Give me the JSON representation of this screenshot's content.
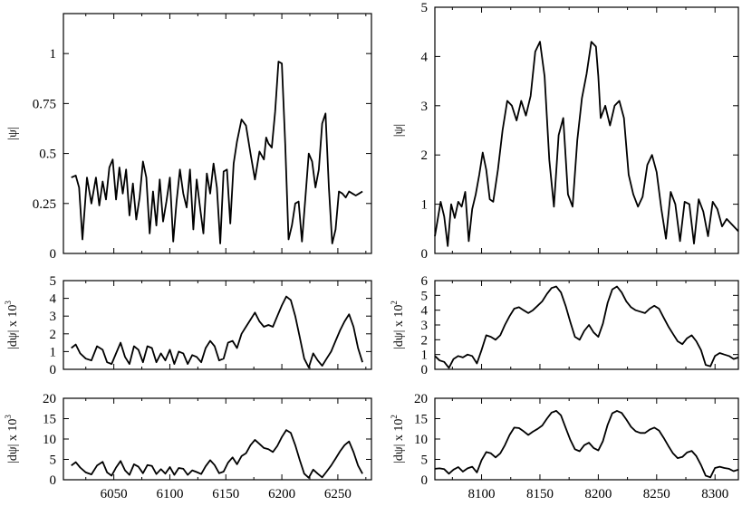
{
  "figure": {
    "background": "#ffffff",
    "line_color": "#000000",
    "frame_color": "#000000"
  },
  "chart_data": [
    {
      "id": "top-left",
      "type": "line",
      "xlabel": "",
      "ylabel": "|ψ|",
      "xlim": [
        6005,
        6280
      ],
      "ylim": [
        0,
        1.2
      ],
      "xticks": [
        6050,
        6100,
        6150,
        6200,
        6250
      ],
      "show_xtick_labels": false,
      "yticks": [
        0,
        0.25,
        0.5,
        0.75,
        1
      ],
      "ytick_labels": [
        "0",
        "0.25",
        "0.5",
        "0.75",
        "1"
      ],
      "grid": false,
      "series": [
        {
          "x": [
            6012,
            6016,
            6019,
            6022,
            6026,
            6030,
            6034,
            6037,
            6040,
            6043,
            6046,
            6049,
            6052,
            6055,
            6058,
            6061,
            6064,
            6067,
            6070,
            6073,
            6076,
            6079,
            6082,
            6085,
            6088,
            6091,
            6094,
            6097,
            6100,
            6103,
            6106,
            6109,
            6112,
            6115,
            6118,
            6121,
            6124,
            6127,
            6130,
            6133,
            6136,
            6139,
            6142,
            6145,
            6148,
            6151,
            6154,
            6157,
            6160,
            6164,
            6168,
            6172,
            6176,
            6180,
            6184,
            6186,
            6188,
            6191,
            6194,
            6197,
            6200,
            6203,
            6206,
            6209,
            6212,
            6215,
            6218,
            6221,
            6224,
            6227,
            6230,
            6233,
            6236,
            6239,
            6242,
            6245,
            6248,
            6251,
            6254,
            6257,
            6260,
            6263,
            6266,
            6269,
            6272
          ],
          "y": [
            0.38,
            0.39,
            0.33,
            0.07,
            0.38,
            0.25,
            0.38,
            0.24,
            0.36,
            0.27,
            0.43,
            0.47,
            0.27,
            0.43,
            0.3,
            0.42,
            0.19,
            0.35,
            0.17,
            0.28,
            0.46,
            0.38,
            0.1,
            0.31,
            0.14,
            0.37,
            0.16,
            0.26,
            0.38,
            0.06,
            0.26,
            0.42,
            0.3,
            0.23,
            0.42,
            0.12,
            0.37,
            0.23,
            0.1,
            0.4,
            0.3,
            0.45,
            0.33,
            0.05,
            0.41,
            0.42,
            0.15,
            0.45,
            0.56,
            0.67,
            0.64,
            0.5,
            0.37,
            0.51,
            0.47,
            0.58,
            0.55,
            0.53,
            0.71,
            0.96,
            0.95,
            0.55,
            0.07,
            0.14,
            0.25,
            0.26,
            0.06,
            0.28,
            0.5,
            0.46,
            0.33,
            0.42,
            0.65,
            0.7,
            0.33,
            0.05,
            0.12,
            0.31,
            0.3,
            0.28,
            0.31,
            0.3,
            0.29,
            0.3,
            0.31
          ]
        }
      ]
    },
    {
      "id": "top-right",
      "type": "line",
      "xlabel": "",
      "ylabel": "|ψ|",
      "xlim": [
        8060,
        8320
      ],
      "ylim": [
        0,
        5
      ],
      "xticks": [
        8100,
        8150,
        8200,
        8250,
        8300
      ],
      "show_xtick_labels": false,
      "yticks": [
        0,
        1,
        2,
        3,
        4,
        5
      ],
      "ytick_labels": [
        "0",
        "1",
        "2",
        "3",
        "4",
        "5"
      ],
      "grid": false,
      "series": [
        {
          "x": [
            8060,
            8065,
            8068,
            8071,
            8074,
            8077,
            8080,
            8083,
            8086,
            8089,
            8092,
            8095,
            8098,
            8101,
            8104,
            8107,
            8110,
            8114,
            8118,
            8122,
            8126,
            8130,
            8134,
            8138,
            8142,
            8146,
            8150,
            8154,
            8158,
            8162,
            8166,
            8170,
            8174,
            8178,
            8182,
            8186,
            8190,
            8194,
            8198,
            8200,
            8202,
            8206,
            8210,
            8214,
            8218,
            8222,
            8226,
            8230,
            8234,
            8238,
            8242,
            8246,
            8250,
            8254,
            8258,
            8262,
            8266,
            8270,
            8274,
            8278,
            8282,
            8286,
            8290,
            8294,
            8298,
            8302,
            8306,
            8310,
            8314,
            8318,
            8320
          ],
          "y": [
            0.35,
            1.05,
            0.75,
            0.15,
            1.0,
            0.72,
            1.05,
            0.95,
            1.25,
            0.25,
            0.9,
            1.2,
            1.6,
            2.05,
            1.7,
            1.1,
            1.05,
            1.7,
            2.5,
            3.1,
            3.0,
            2.7,
            3.1,
            2.8,
            3.2,
            4.1,
            4.3,
            3.6,
            1.9,
            0.95,
            2.4,
            2.75,
            1.2,
            0.95,
            2.3,
            3.15,
            3.65,
            4.3,
            4.2,
            3.6,
            2.75,
            3.0,
            2.6,
            3.0,
            3.1,
            2.75,
            1.6,
            1.2,
            0.95,
            1.15,
            1.8,
            2.0,
            1.65,
            0.9,
            0.3,
            1.25,
            1.0,
            0.25,
            1.05,
            1.0,
            0.2,
            1.1,
            0.85,
            0.35,
            1.05,
            0.9,
            0.55,
            0.7,
            0.6,
            0.5,
            0.45
          ]
        }
      ]
    },
    {
      "id": "mid-left",
      "type": "line",
      "xlabel": "",
      "ylabel": "|dψ| x 10^3",
      "ylabel_parts": {
        "base": "|dψ| x 10",
        "exponent": "3"
      },
      "xlim": [
        6005,
        6280
      ],
      "ylim": [
        0,
        5
      ],
      "xticks": [
        6050,
        6100,
        6150,
        6200,
        6250
      ],
      "show_xtick_labels": false,
      "yticks": [
        0,
        1,
        2,
        3,
        4,
        5
      ],
      "ytick_labels": [
        "0",
        "1",
        "2",
        "3",
        "4",
        "5"
      ],
      "grid": false,
      "series": [
        {
          "x": [
            6012,
            6016,
            6020,
            6025,
            6030,
            6035,
            6040,
            6044,
            6048,
            6052,
            6056,
            6060,
            6064,
            6068,
            6072,
            6076,
            6080,
            6084,
            6088,
            6092,
            6096,
            6100,
            6104,
            6108,
            6112,
            6116,
            6120,
            6124,
            6128,
            6132,
            6136,
            6140,
            6144,
            6148,
            6152,
            6156,
            6160,
            6164,
            6168,
            6172,
            6176,
            6180,
            6184,
            6188,
            6192,
            6196,
            6200,
            6204,
            6208,
            6212,
            6216,
            6220,
            6224,
            6228,
            6232,
            6236,
            6240,
            6244,
            6248,
            6252,
            6256,
            6260,
            6264,
            6268,
            6272
          ],
          "y": [
            1.2,
            1.4,
            0.9,
            0.6,
            0.5,
            1.3,
            1.1,
            0.4,
            0.3,
            0.9,
            1.5,
            0.7,
            0.3,
            1.3,
            1.1,
            0.4,
            1.3,
            1.2,
            0.4,
            0.9,
            0.5,
            1.1,
            0.3,
            1.0,
            0.9,
            0.3,
            0.8,
            0.7,
            0.4,
            1.2,
            1.6,
            1.3,
            0.5,
            0.6,
            1.5,
            1.6,
            1.2,
            2.0,
            2.4,
            2.8,
            3.2,
            2.7,
            2.4,
            2.5,
            2.4,
            3.0,
            3.6,
            4.1,
            3.9,
            3.0,
            1.8,
            0.6,
            0.1,
            0.9,
            0.5,
            0.2,
            0.6,
            1.0,
            1.6,
            2.2,
            2.7,
            3.1,
            2.4,
            1.2,
            0.4
          ]
        }
      ]
    },
    {
      "id": "mid-right",
      "type": "line",
      "xlabel": "",
      "ylabel": "|dψ| x 10^2",
      "ylabel_parts": {
        "base": "|dψ| x 10",
        "exponent": "2"
      },
      "xlim": [
        8060,
        8320
      ],
      "ylim": [
        0,
        6
      ],
      "xticks": [
        8100,
        8150,
        8200,
        8250,
        8300
      ],
      "show_xtick_labels": false,
      "yticks": [
        0,
        1,
        2,
        3,
        4,
        5,
        6
      ],
      "ytick_labels": [
        "0",
        "1",
        "2",
        "3",
        "4",
        "5",
        "6"
      ],
      "grid": false,
      "series": [
        {
          "x": [
            8060,
            8064,
            8068,
            8072,
            8076,
            8080,
            8084,
            8088,
            8092,
            8096,
            8100,
            8104,
            8108,
            8112,
            8116,
            8120,
            8124,
            8128,
            8132,
            8136,
            8140,
            8144,
            8148,
            8152,
            8156,
            8160,
            8164,
            8168,
            8172,
            8176,
            8180,
            8184,
            8188,
            8192,
            8196,
            8200,
            8204,
            8208,
            8212,
            8216,
            8220,
            8224,
            8228,
            8232,
            8236,
            8240,
            8244,
            8248,
            8252,
            8256,
            8260,
            8264,
            8268,
            8272,
            8276,
            8280,
            8284,
            8288,
            8292,
            8296,
            8300,
            8304,
            8308,
            8312,
            8316,
            8320
          ],
          "y": [
            0.9,
            0.6,
            0.5,
            0.1,
            0.7,
            0.9,
            0.8,
            1.0,
            0.9,
            0.4,
            1.3,
            2.3,
            2.2,
            2.0,
            2.3,
            3.0,
            3.6,
            4.1,
            4.2,
            4.0,
            3.8,
            4.0,
            4.3,
            4.6,
            5.1,
            5.5,
            5.6,
            5.2,
            4.3,
            3.2,
            2.2,
            2.0,
            2.6,
            3.0,
            2.5,
            2.2,
            3.1,
            4.5,
            5.4,
            5.6,
            5.2,
            4.6,
            4.2,
            4.0,
            3.9,
            3.8,
            4.1,
            4.3,
            4.1,
            3.5,
            2.9,
            2.4,
            1.9,
            1.7,
            2.1,
            2.3,
            1.9,
            1.3,
            0.3,
            0.2,
            0.9,
            1.1,
            1.0,
            0.9,
            0.7,
            0.8
          ]
        }
      ]
    },
    {
      "id": "bottom-left",
      "type": "line",
      "xlabel": "",
      "ylabel": "|dψ| x 10^3",
      "ylabel_parts": {
        "base": "|dψ| x 10",
        "exponent": "3"
      },
      "xlim": [
        6005,
        6280
      ],
      "ylim": [
        0,
        20
      ],
      "xticks": [
        6050,
        6100,
        6150,
        6200,
        6250
      ],
      "show_xtick_labels": true,
      "xtick_labels": [
        "6050",
        "6100",
        "6150",
        "6200",
        "6250"
      ],
      "yticks": [
        0,
        5,
        10,
        15,
        20
      ],
      "ytick_labels": [
        "0",
        "5",
        "10",
        "15",
        "20"
      ],
      "grid": false,
      "series": [
        {
          "x": [
            6012,
            6016,
            6020,
            6025,
            6030,
            6035,
            6040,
            6044,
            6048,
            6052,
            6056,
            6060,
            6064,
            6068,
            6072,
            6076,
            6080,
            6084,
            6088,
            6092,
            6096,
            6100,
            6104,
            6108,
            6112,
            6116,
            6120,
            6124,
            6128,
            6132,
            6136,
            6140,
            6144,
            6148,
            6152,
            6156,
            6160,
            6164,
            6168,
            6172,
            6176,
            6180,
            6184,
            6188,
            6192,
            6196,
            6200,
            6204,
            6208,
            6212,
            6216,
            6220,
            6224,
            6228,
            6232,
            6236,
            6240,
            6244,
            6248,
            6252,
            6256,
            6260,
            6264,
            6268,
            6272
          ],
          "y": [
            3.5,
            4.3,
            3.0,
            1.8,
            1.3,
            3.5,
            4.4,
            1.8,
            1.0,
            3.0,
            4.6,
            2.3,
            1.2,
            3.8,
            3.2,
            1.6,
            3.6,
            3.4,
            1.4,
            2.6,
            1.5,
            3.1,
            1.2,
            2.9,
            2.7,
            1.2,
            2.3,
            1.9,
            1.4,
            3.3,
            4.8,
            3.6,
            1.6,
            2.0,
            4.2,
            5.5,
            3.8,
            5.8,
            6.5,
            8.5,
            9.8,
            8.8,
            7.8,
            7.5,
            6.8,
            8.3,
            10.5,
            12.2,
            11.5,
            8.5,
            4.8,
            1.5,
            0.5,
            2.5,
            1.5,
            0.6,
            2.0,
            3.5,
            5.2,
            7.0,
            8.5,
            9.4,
            6.8,
            3.5,
            1.5
          ]
        }
      ]
    },
    {
      "id": "bottom-right",
      "type": "line",
      "xlabel": "",
      "ylabel": "|dψ| x 10^2",
      "ylabel_parts": {
        "base": "|dψ| x 10",
        "exponent": "2"
      },
      "xlim": [
        8060,
        8320
      ],
      "ylim": [
        0,
        20
      ],
      "xticks": [
        8100,
        8150,
        8200,
        8250,
        8300
      ],
      "show_xtick_labels": true,
      "xtick_labels": [
        "8100",
        "8150",
        "8200",
        "8250",
        "8300"
      ],
      "yticks": [
        0,
        5,
        10,
        15,
        20
      ],
      "ytick_labels": [
        "0",
        "5",
        "10",
        "15",
        "20"
      ],
      "grid": false,
      "series": [
        {
          "x": [
            8060,
            8064,
            8068,
            8072,
            8076,
            8080,
            8084,
            8088,
            8092,
            8096,
            8100,
            8104,
            8108,
            8112,
            8116,
            8120,
            8124,
            8128,
            8132,
            8136,
            8140,
            8144,
            8148,
            8152,
            8156,
            8160,
            8164,
            8168,
            8172,
            8176,
            8180,
            8184,
            8188,
            8192,
            8196,
            8200,
            8204,
            8208,
            8212,
            8216,
            8220,
            8224,
            8228,
            8232,
            8236,
            8240,
            8244,
            8248,
            8252,
            8256,
            8260,
            8264,
            8268,
            8272,
            8276,
            8280,
            8284,
            8288,
            8292,
            8296,
            8300,
            8304,
            8308,
            8312,
            8316,
            8320
          ],
          "y": [
            2.7,
            2.8,
            2.6,
            1.5,
            2.5,
            3.1,
            2.0,
            2.8,
            3.2,
            1.8,
            4.8,
            6.8,
            6.5,
            5.5,
            6.5,
            8.5,
            11.0,
            12.8,
            12.7,
            11.9,
            11.0,
            11.8,
            12.5,
            13.3,
            15.0,
            16.5,
            16.9,
            15.8,
            12.8,
            9.8,
            7.5,
            7.0,
            8.5,
            9.1,
            7.8,
            7.2,
            9.5,
            13.5,
            16.3,
            16.9,
            16.4,
            14.8,
            13.0,
            11.9,
            11.5,
            11.5,
            12.3,
            12.8,
            12.1,
            10.3,
            8.3,
            6.5,
            5.3,
            5.6,
            6.7,
            7.1,
            5.8,
            3.6,
            1.0,
            0.6,
            2.9,
            3.2,
            2.9,
            2.7,
            2.1,
            2.5
          ]
        }
      ]
    }
  ]
}
